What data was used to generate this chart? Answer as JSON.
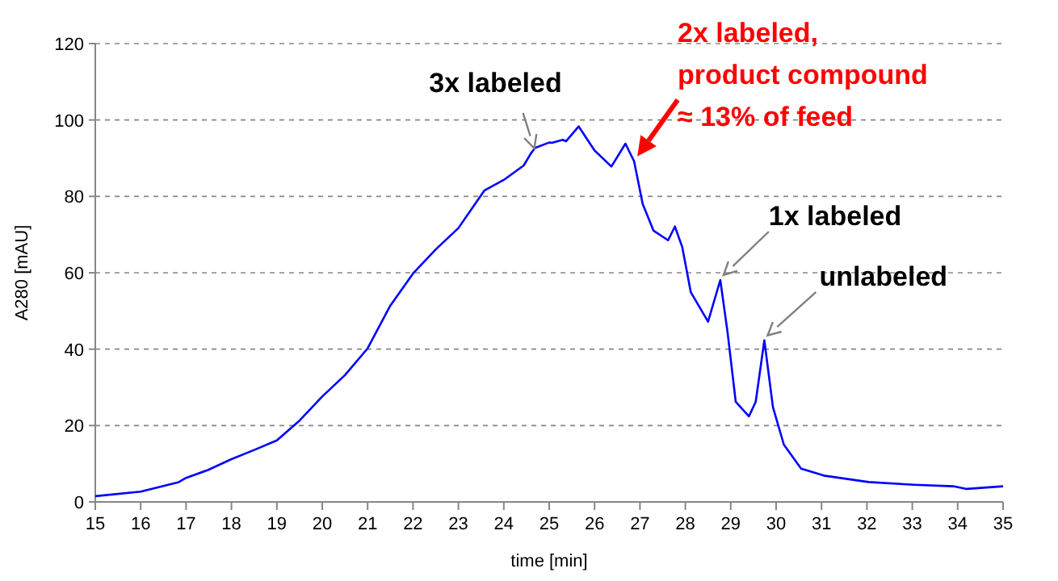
{
  "chart_data": {
    "type": "line",
    "xlabel": "time [min]",
    "ylabel": "A280 [mAU]",
    "xlim": [
      15,
      35
    ],
    "xticks": [
      15,
      16,
      17,
      18,
      19,
      20,
      21,
      22,
      23,
      24,
      25,
      26,
      27,
      28,
      29,
      30,
      31,
      32,
      33,
      34,
      35
    ],
    "ylim": [
      0,
      120
    ],
    "yticks": [
      0,
      20,
      40,
      60,
      80,
      100,
      120
    ],
    "grid": "y",
    "marker": "none",
    "line_style": "solid",
    "series": [
      {
        "color": "#0000ff",
        "x": [
          15,
          16,
          16.84,
          17,
          17.47,
          18,
          18.5,
          19,
          19.5,
          20,
          20.5,
          21,
          21.5,
          22,
          22.5,
          23,
          23.57,
          24,
          24.44,
          24.6,
          24.69,
          25,
          25.06,
          25.3,
          25.37,
          25.65,
          26,
          26.37,
          26.68,
          26.87,
          27.06,
          27.3,
          27.62,
          27.77,
          27.93,
          28.12,
          28.5,
          28.77,
          28.93,
          29.11,
          29.4,
          29.55,
          29.74,
          29.93,
          30.17,
          30.55,
          31.05,
          32.04,
          33.04,
          33.9,
          34.2,
          35
        ],
        "values": [
          1.5,
          2.7,
          5.2,
          6.3,
          8.3,
          11.2,
          13.6,
          16.1,
          21.3,
          27.6,
          33.2,
          40.2,
          51.4,
          59.8,
          66.1,
          71.7,
          81.5,
          84.3,
          88.1,
          91.3,
          92.7,
          94.1,
          94,
          94.8,
          94.4,
          98.3,
          92,
          87.8,
          93.8,
          89.2,
          78,
          71,
          68.5,
          72.1,
          66.8,
          54.9,
          47.2,
          58.1,
          44.4,
          26.2,
          22.4,
          26.2,
          42.3,
          24.8,
          15,
          8.7,
          6.9,
          5.2,
          4.5,
          4.1,
          3.4,
          4.1
        ]
      }
    ],
    "annotations": [
      {
        "text": "3x labeled",
        "x": 24.6,
        "y": 91.3
      },
      {
        "text": "2x labeled,\nproduct compound\n≈ 13% of feed",
        "x": 26.87,
        "y": 89.2
      },
      {
        "text": "1x labeled",
        "x": 28.77,
        "y": 58.1
      },
      {
        "text": "unlabeled",
        "x": 29.74,
        "y": 42.3
      }
    ]
  }
}
